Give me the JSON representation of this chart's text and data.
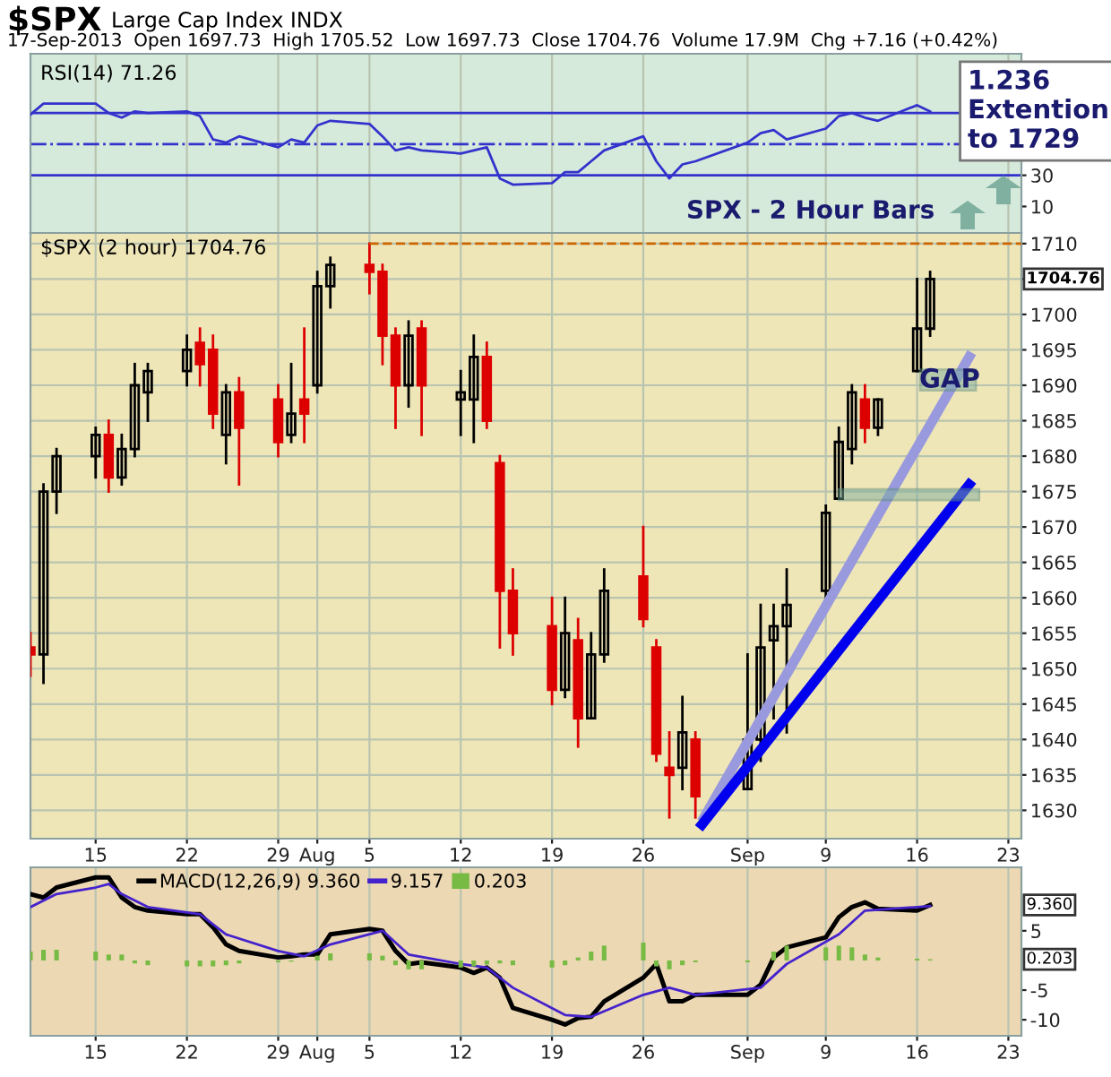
{
  "chart_data": [
    {
      "type": "line",
      "title": "$SPX",
      "subtitle": "Large Cap Index INDX",
      "annotations": [
        "17-Sep-2013  Open 1697.73  High 1705.52  Low 1697.73  Close 1704.76  Volume 17.9M  Chg +7.16 (+0.42%)",
        "RSI(14) 71.26",
        "1.236\nExtention\nto 1729",
        "SPX - 2 Hour Bars"
      ],
      "x": [
        "2013-07-10",
        "2013-07-11",
        "2013-07-12",
        "2013-07-15",
        "2013-07-16",
        "2013-07-17",
        "2013-07-18",
        "2013-07-19",
        "2013-07-22",
        "2013-07-23",
        "2013-07-24",
        "2013-07-25",
        "2013-07-26",
        "2013-07-29",
        "2013-07-30",
        "2013-07-31",
        "2013-08-01",
        "2013-08-02",
        "2013-08-05",
        "2013-08-06",
        "2013-08-07",
        "2013-08-08",
        "2013-08-09",
        "2013-08-12",
        "2013-08-13",
        "2013-08-14",
        "2013-08-15",
        "2013-08-16",
        "2013-08-19",
        "2013-08-20",
        "2013-08-21",
        "2013-08-22",
        "2013-08-23",
        "2013-08-26",
        "2013-08-27",
        "2013-08-28",
        "2013-08-29",
        "2013-08-30",
        "2013-09-03",
        "2013-09-04",
        "2013-09-05",
        "2013-09-06",
        "2013-09-09",
        "2013-09-10",
        "2013-09-11",
        "2013-09-12",
        "2013-09-13",
        "2013-09-16",
        "2013-09-17"
      ],
      "series": [
        {
          "color": "#3333cc",
          "values": [
            69,
            76,
            76,
            76,
            70,
            67,
            71,
            70,
            71,
            68,
            53,
            51,
            55,
            48,
            53,
            51,
            62,
            65,
            63,
            55,
            46,
            48,
            46,
            44,
            46,
            48,
            28,
            24,
            25,
            32,
            32,
            39,
            46,
            55,
            39,
            28,
            37,
            39,
            51,
            57,
            59,
            53,
            60,
            68,
            70,
            67,
            65,
            75,
            71
          ]
        }
      ],
      "xlim": [
        "2013-07-10",
        "2013-09-24"
      ],
      "xticks": [
        {
          "value": "2013-07-15",
          "label": null
        },
        {
          "value": "2013-07-22",
          "label": null
        },
        {
          "value": "2013-07-29",
          "label": null
        },
        {
          "value": "2013-08-01",
          "label": null
        },
        {
          "value": "2013-08-05",
          "label": null
        },
        {
          "value": "2013-08-12",
          "label": null
        },
        {
          "value": "2013-08-19",
          "label": null
        },
        {
          "value": "2013-08-26",
          "label": null
        },
        {
          "value": "2013-09-03",
          "label": null
        },
        {
          "value": "2013-09-09",
          "label": null
        },
        {
          "value": "2013-09-16",
          "label": null
        },
        {
          "value": "2013-09-23",
          "label": null
        }
      ],
      "ylim": [
        -7,
        108
      ],
      "yticks": [
        30,
        10
      ],
      "tick_labels": "y",
      "grid": "x",
      "ref_lines": [
        {
          "axis": "y",
          "value": 70,
          "color": "#3333cc",
          "line_style": "solid"
        },
        {
          "axis": "y",
          "value": 50,
          "color": "#3333cc",
          "line_style": "dashdot"
        },
        {
          "axis": "y",
          "value": 30,
          "color": "#3333cc",
          "line_style": "solid"
        }
      ]
    },
    {
      "type": "candlestick",
      "annotations": [
        "$SPX (2 hour) 1704.76",
        "GAP",
        "1704.76"
      ],
      "x": [
        "2013-07-10",
        "2013-07-11",
        "2013-07-12",
        "2013-07-15",
        "2013-07-16",
        "2013-07-17",
        "2013-07-18",
        "2013-07-19",
        "2013-07-22",
        "2013-07-23",
        "2013-07-24",
        "2013-07-25",
        "2013-07-26",
        "2013-07-29",
        "2013-07-30",
        "2013-07-31",
        "2013-08-01",
        "2013-08-02",
        "2013-08-05",
        "2013-08-06",
        "2013-08-07",
        "2013-08-08",
        "2013-08-09",
        "2013-08-12",
        "2013-08-13",
        "2013-08-14",
        "2013-08-15",
        "2013-08-16",
        "2013-08-19",
        "2013-08-20",
        "2013-08-21",
        "2013-08-22",
        "2013-08-23",
        "2013-08-26",
        "2013-08-27",
        "2013-08-28",
        "2013-08-29",
        "2013-08-30",
        "2013-09-03",
        "2013-09-04",
        "2013-09-05",
        "2013-09-06",
        "2013-09-09",
        "2013-09-10",
        "2013-09-11",
        "2013-09-12",
        "2013-09-13",
        "2013-09-16",
        "2013-09-17"
      ],
      "ohlc": [
        [
          1653,
          1655,
          1649,
          1652
        ],
        [
          1652,
          1676,
          1648,
          1675
        ],
        [
          1675,
          1681,
          1672,
          1680
        ],
        [
          1680,
          1684,
          1677,
          1683
        ],
        [
          1683,
          1685,
          1675,
          1677
        ],
        [
          1677,
          1683,
          1676,
          1681
        ],
        [
          1681,
          1693,
          1680,
          1690
        ],
        [
          1689,
          1693,
          1685,
          1692
        ],
        [
          1692,
          1697,
          1690,
          1695
        ],
        [
          1696,
          1698,
          1690,
          1693
        ],
        [
          1695,
          1697,
          1684,
          1686
        ],
        [
          1683,
          1690,
          1679,
          1689
        ],
        [
          1689,
          1691,
          1676,
          1684
        ],
        [
          1688,
          1690,
          1680,
          1682
        ],
        [
          1683,
          1693,
          1682,
          1686
        ],
        [
          1688,
          1698,
          1682,
          1686
        ],
        [
          1690,
          1706,
          1689,
          1704
        ],
        [
          1704,
          1708,
          1701,
          1707
        ],
        [
          1707,
          1710,
          1703,
          1706
        ],
        [
          1706,
          1707,
          1693,
          1697
        ],
        [
          1697,
          1698,
          1684,
          1690
        ],
        [
          1690,
          1699,
          1687,
          1697
        ],
        [
          1698,
          1699,
          1683,
          1690
        ],
        [
          1688,
          1692,
          1683,
          1689
        ],
        [
          1688,
          1697,
          1682,
          1694
        ],
        [
          1694,
          1696,
          1684,
          1685
        ],
        [
          1679,
          1680,
          1653,
          1661
        ],
        [
          1661,
          1664,
          1652,
          1655
        ],
        [
          1656,
          1660,
          1645,
          1647
        ],
        [
          1647,
          1660,
          1646,
          1655
        ],
        [
          1654,
          1657,
          1639,
          1643
        ],
        [
          1643,
          1655,
          1643,
          1652
        ],
        [
          1652,
          1664,
          1651,
          1661
        ],
        [
          1663,
          1670,
          1656,
          1657
        ],
        [
          1653,
          1654,
          1637,
          1638
        ],
        [
          1636,
          1641,
          1629,
          1635
        ],
        [
          1636,
          1646,
          1633,
          1641
        ],
        [
          1640,
          1641,
          1629,
          1632
        ],
        [
          1633,
          1652,
          1633,
          1640
        ],
        [
          1640,
          1659,
          1637,
          1653
        ],
        [
          1654,
          1659,
          1643,
          1656
        ],
        [
          1656,
          1664,
          1641,
          1659
        ],
        [
          1661,
          1673,
          1660,
          1672
        ],
        [
          1674,
          1684,
          1674,
          1682
        ],
        [
          1681,
          1690,
          1679,
          1689
        ],
        [
          1688,
          1690,
          1682,
          1684
        ],
        [
          1684,
          1688,
          1683,
          1688
        ],
        [
          1692,
          1705,
          1692,
          1698
        ],
        [
          1698,
          1706,
          1697,
          1705
        ]
      ],
      "series": [
        {
          "type": "line",
          "color": "#cc6600",
          "line_style": "dashed",
          "x": [
            "2013-08-05",
            "2013-09-24"
          ],
          "values": [
            1710,
            1710
          ]
        },
        {
          "type": "line",
          "color": "#9999dd",
          "x": [
            "2013-08-30T16:00",
            "2013-09-20"
          ],
          "values": [
            1629,
            1694
          ]
        },
        {
          "type": "line",
          "color": "#0000ee",
          "x": [
            "2013-08-30T12:00",
            "2013-09-20"
          ],
          "values": [
            1628,
            1676
          ]
        }
      ],
      "xlim": [
        "2013-07-10",
        "2013-09-24"
      ],
      "xticks": [
        {
          "value": "2013-07-15",
          "label": "15"
        },
        {
          "value": "2013-07-22",
          "label": "22"
        },
        {
          "value": "2013-07-29",
          "label": "29"
        },
        {
          "value": "2013-08-01",
          "label": "Aug"
        },
        {
          "value": "2013-08-05",
          "label": "5"
        },
        {
          "value": "2013-08-12",
          "label": "12"
        },
        {
          "value": "2013-08-19",
          "label": "19"
        },
        {
          "value": "2013-08-26",
          "label": "26"
        },
        {
          "value": "2013-09-03",
          "label": "Sep"
        },
        {
          "value": "2013-09-09",
          "label": "9"
        },
        {
          "value": "2013-09-16",
          "label": "16"
        },
        {
          "value": "2013-09-23",
          "label": "23"
        }
      ],
      "ylim": [
        1626,
        1711.5
      ],
      "yticks": [
        1630,
        1635,
        1640,
        1645,
        1650,
        1655,
        1660,
        1665,
        1670,
        1675,
        1680,
        1685,
        1690,
        1695,
        1700,
        {
          "value": 1705,
          "label": null
        },
        1710
      ],
      "grid": true
    },
    {
      "type": "line",
      "legend": "top left",
      "annotations": [
        "9.360",
        "0.203"
      ],
      "x": [
        "2013-07-10",
        "2013-07-11",
        "2013-07-12",
        "2013-07-15",
        "2013-07-16",
        "2013-07-17",
        "2013-07-18",
        "2013-07-19",
        "2013-07-22",
        "2013-07-23",
        "2013-07-24",
        "2013-07-25",
        "2013-07-26",
        "2013-07-29",
        "2013-07-30",
        "2013-07-31",
        "2013-08-01",
        "2013-08-02",
        "2013-08-05",
        "2013-08-06",
        "2013-08-07",
        "2013-08-08",
        "2013-08-09",
        "2013-08-12",
        "2013-08-13",
        "2013-08-14",
        "2013-08-15",
        "2013-08-16",
        "2013-08-19",
        "2013-08-20",
        "2013-08-21",
        "2013-08-22",
        "2013-08-23",
        "2013-08-26",
        "2013-08-27",
        "2013-08-28",
        "2013-08-29",
        "2013-08-30",
        "2013-09-03",
        "2013-09-04",
        "2013-09-05",
        "2013-09-06",
        "2013-09-09",
        "2013-09-10",
        "2013-09-11",
        "2013-09-12",
        "2013-09-13",
        "2013-09-16",
        "2013-09-17"
      ],
      "series": [
        {
          "type": "line",
          "name": "MACD(12,26,9) 9.360",
          "color": "#000000",
          "values": [
            11.2,
            10.6,
            12.3,
            14,
            14,
            10.6,
            9,
            8.4,
            7.8,
            7.8,
            5.6,
            2.7,
            1.6,
            0.5,
            0.7,
            1,
            1,
            4.4,
            5.3,
            5,
            1.6,
            -0.6,
            -0.3,
            -1.2,
            -2.1,
            -1.2,
            -2.9,
            -8,
            -10,
            -10.8,
            -9.7,
            -9.5,
            -6.9,
            -2.9,
            -0.6,
            -6.9,
            -6.9,
            -5.8,
            -5.8,
            -4.1,
            0.5,
            2.2,
            3.9,
            7.3,
            9,
            9.8,
            8.7,
            8.4,
            9.36
          ]
        },
        {
          "type": "line",
          "name": "9.157",
          "color": "#4422cc",
          "x": [
            "2013-07-10",
            "2013-07-12",
            "2013-07-15",
            "2013-07-16",
            "2013-07-17",
            "2013-07-19",
            "2013-07-23",
            "2013-07-25",
            "2013-07-29",
            "2013-07-31",
            "2013-08-02",
            "2013-08-06",
            "2013-08-08",
            "2013-08-12",
            "2013-08-14",
            "2013-08-16",
            "2013-08-20",
            "2013-08-22",
            "2013-08-26",
            "2013-08-28",
            "2013-08-30",
            "2013-09-04",
            "2013-09-06",
            "2013-09-10",
            "2013-09-12",
            "2013-09-16",
            "2013-09-17"
          ],
          "values": [
            9,
            11.2,
            12.3,
            12.9,
            11.2,
            9,
            7.8,
            4.4,
            1.6,
            0.7,
            2.7,
            5,
            1,
            -0.6,
            -1.2,
            -4.6,
            -9.2,
            -9.5,
            -5.8,
            -4.6,
            -5.8,
            -4.6,
            -0.6,
            4.4,
            8.4,
            9,
            9.16
          ]
        },
        {
          "type": "bar",
          "name": "0.203",
          "color": "#77bb44",
          "values": [
            1.5,
            1.8,
            1.8,
            1.5,
            1,
            1,
            -0.5,
            -0.8,
            -1,
            -1,
            -1,
            -0.8,
            -0.5,
            -0.3,
            -0.2,
            0,
            0.8,
            1.2,
            1.2,
            0.8,
            -0.8,
            -1.5,
            -1.5,
            -1.2,
            -1,
            -0.7,
            -0.5,
            -0.8,
            -1.2,
            -0.8,
            0.5,
            1.5,
            2.5,
            3,
            -1,
            -1.5,
            -0.8,
            -0.3,
            -0.3,
            0,
            1.5,
            2.5,
            2.2,
            2.5,
            2.2,
            1,
            0.5,
            0.3,
            0.2
          ]
        }
      ],
      "xlim": [
        "2013-07-10",
        "2013-09-24"
      ],
      "xticks": [
        {
          "value": "2013-07-15",
          "label": "15"
        },
        {
          "value": "2013-07-22",
          "label": "22"
        },
        {
          "value": "2013-07-29",
          "label": "29"
        },
        {
          "value": "2013-08-01",
          "label": "Aug"
        },
        {
          "value": "2013-08-05",
          "label": "5"
        },
        {
          "value": "2013-08-12",
          "label": "12"
        },
        {
          "value": "2013-08-19",
          "label": "19"
        },
        {
          "value": "2013-08-26",
          "label": "26"
        },
        {
          "value": "2013-09-03",
          "label": "Sep"
        },
        {
          "value": "2013-09-09",
          "label": "9"
        },
        {
          "value": "2013-09-16",
          "label": "16"
        },
        {
          "value": "2013-09-23",
          "label": "23"
        }
      ],
      "ylim": [
        -12.7,
        15.7
      ],
      "yticks": [
        5,
        -5,
        -10
      ],
      "grid": "x"
    }
  ]
}
